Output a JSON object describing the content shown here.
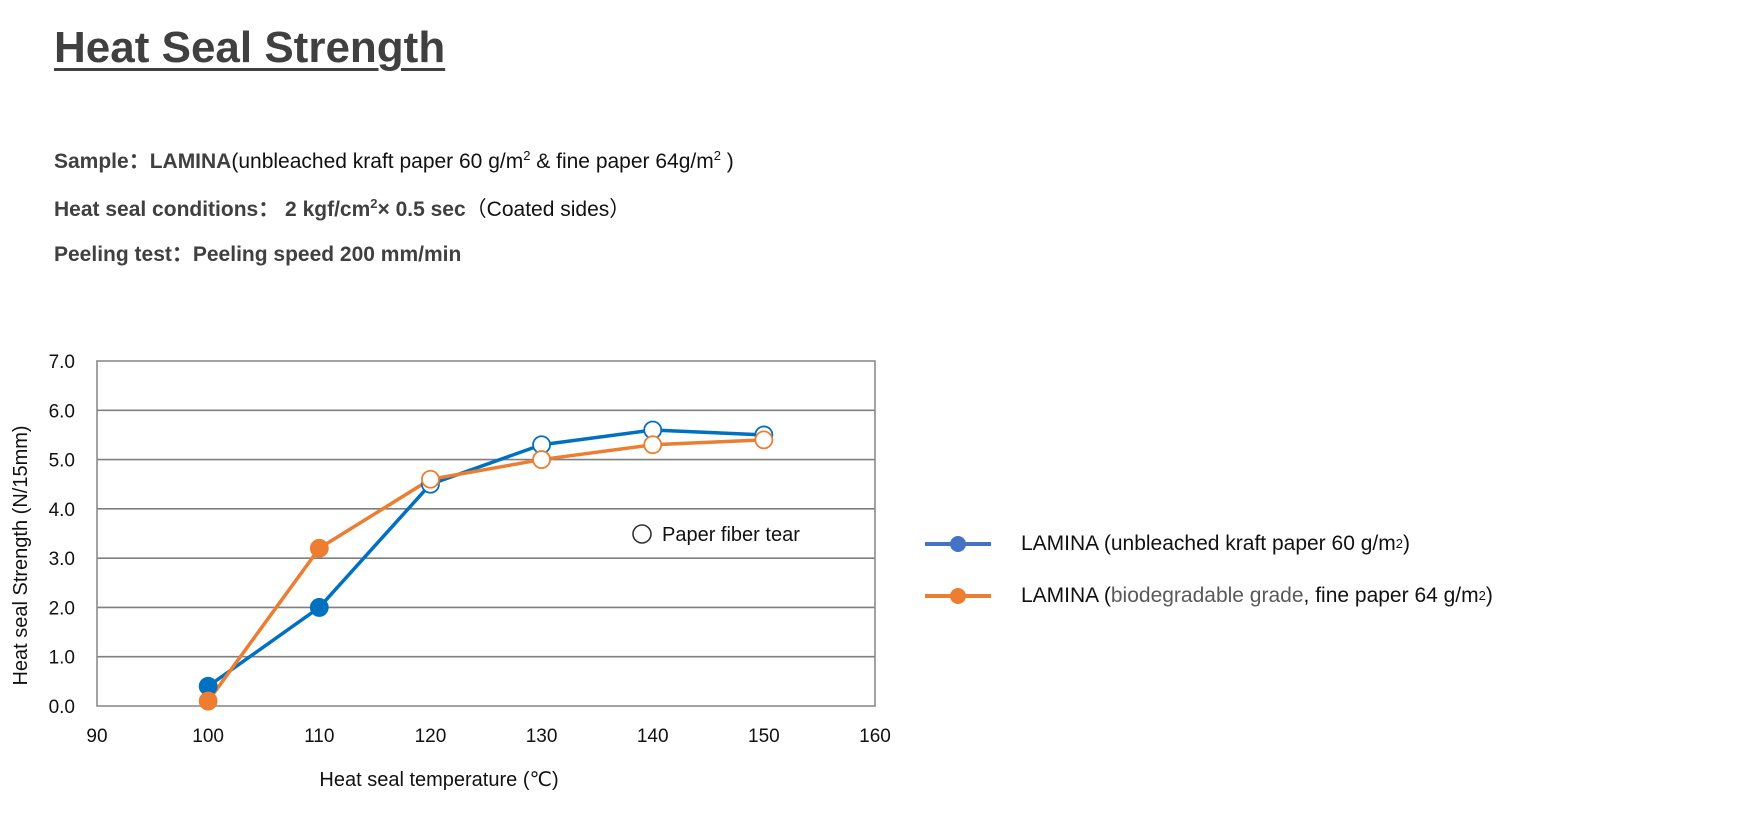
{
  "title": "Heat Seal Strength",
  "info": {
    "sample_label": "Sample：LAMINA",
    "sample_detail_a": "(unbleached kraft paper 60 g/m",
    "sample_sup_a": "2",
    "sample_detail_b": " & fine paper 64g/m",
    "sample_sup_b": "2",
    "sample_detail_c": " )",
    "conditions_label": "Heat seal conditions： 2 kgf/cm",
    "conditions_sup": "2",
    "conditions_value": "× 0.5 sec",
    "conditions_note": "（Coated sides）",
    "peeling_label": "Peeling test：Peeling speed  200 mm/min"
  },
  "legend": {
    "series1_a": "LAMINA (unbleached kraft paper 60 g/m",
    "series1_sup": "2",
    "series1_b": ")",
    "series2_a": "LAMINA (",
    "series2_grey": "biodegradable grade",
    "series2_b": ", fine paper 64 g/m",
    "series2_sup": "2",
    "series2_c": ")"
  },
  "chart_data": {
    "type": "scatter",
    "xlabel": "Heat seal temperature (℃)",
    "ylabel": "Heat seal Strength (N/15mm)",
    "xlim": [
      90,
      160
    ],
    "ylim": [
      0,
      7
    ],
    "x_ticks": [
      "90",
      "100",
      "110",
      "120",
      "130",
      "140",
      "150",
      "160"
    ],
    "y_ticks": [
      "0.0",
      "1.0",
      "2.0",
      "3.0",
      "4.0",
      "5.0",
      "6.0",
      "7.0"
    ],
    "grid": "horizontal",
    "annotation": "Paper fiber tear",
    "series": [
      {
        "color": "#0070C0",
        "legend_color": "#4472C4",
        "x": [
          100,
          110,
          120,
          130,
          140,
          150
        ],
        "y": [
          0.4,
          2.0,
          4.5,
          5.3,
          5.6,
          5.5
        ],
        "fiber_tear": [
          false,
          false,
          true,
          true,
          true,
          true
        ]
      },
      {
        "color": "#ED7D31",
        "legend_color": "#ED7D31",
        "x": [
          100,
          110,
          120,
          130,
          140,
          150
        ],
        "y": [
          0.1,
          3.2,
          4.6,
          5.0,
          5.3,
          5.4
        ],
        "fiber_tear": [
          false,
          false,
          true,
          true,
          true,
          true
        ]
      }
    ]
  }
}
